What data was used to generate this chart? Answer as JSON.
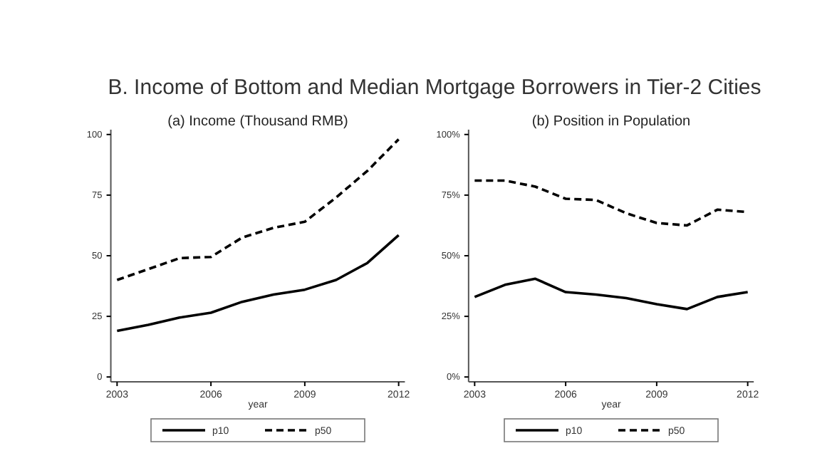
{
  "chart_data": [
    {
      "type": "line",
      "title": "B. Income of Bottom and Median Mortgage Borrowers in Tier-2 Cities",
      "subtitle": "(a) Income (Thousand RMB)",
      "xlabel": "year",
      "x": [
        2003,
        2004,
        2005,
        2006,
        2007,
        2008,
        2009,
        2010,
        2011,
        2012
      ],
      "series": [
        {
          "name": "p10",
          "color": "#000000",
          "line_style": "solid",
          "values": [
            19,
            21.5,
            24.5,
            26.5,
            31,
            34,
            36,
            40,
            47,
            58.5
          ]
        },
        {
          "name": "p50",
          "color": "#000000",
          "line_style": "dashed",
          "values": [
            40,
            44.5,
            49,
            49.5,
            57.5,
            61.5,
            64,
            74,
            85,
            98
          ]
        }
      ],
      "xlim": [
        2002.8,
        2012.2
      ],
      "xticks": [
        2003,
        2006,
        2009,
        2012
      ],
      "ylim": [
        -2,
        102
      ],
      "yticks": [
        0,
        25,
        50,
        75,
        100
      ],
      "grid": false,
      "legend": "bottom",
      "marker": "none"
    },
    {
      "type": "line",
      "title": "(b) Position in Population",
      "xlabel": "year",
      "x": [
        2003,
        2004,
        2005,
        2006,
        2007,
        2008,
        2009,
        2010,
        2011,
        2012
      ],
      "series": [
        {
          "name": "p10",
          "color": "#000000",
          "line_style": "solid",
          "values": [
            33,
            38,
            40.5,
            35,
            34,
            32.5,
            30,
            28,
            33,
            35
          ]
        },
        {
          "name": "p50",
          "color": "#000000",
          "line_style": "dashed",
          "values": [
            81,
            81,
            78.5,
            73.5,
            73,
            67.5,
            63.5,
            62.5,
            69,
            68
          ]
        }
      ],
      "xlim": [
        2002.8,
        2012.2
      ],
      "xticks": [
        2003,
        2006,
        2009,
        2012
      ],
      "ylim": [
        -2,
        102
      ],
      "yticks": [
        {
          "value": 0,
          "label": "0%"
        },
        {
          "value": 25,
          "label": "25%"
        },
        {
          "value": 50,
          "label": "50%"
        },
        {
          "value": 75,
          "label": "75%"
        },
        {
          "value": 100,
          "label": "100%"
        }
      ],
      "grid": false,
      "legend": "bottom",
      "marker": "none"
    }
  ]
}
